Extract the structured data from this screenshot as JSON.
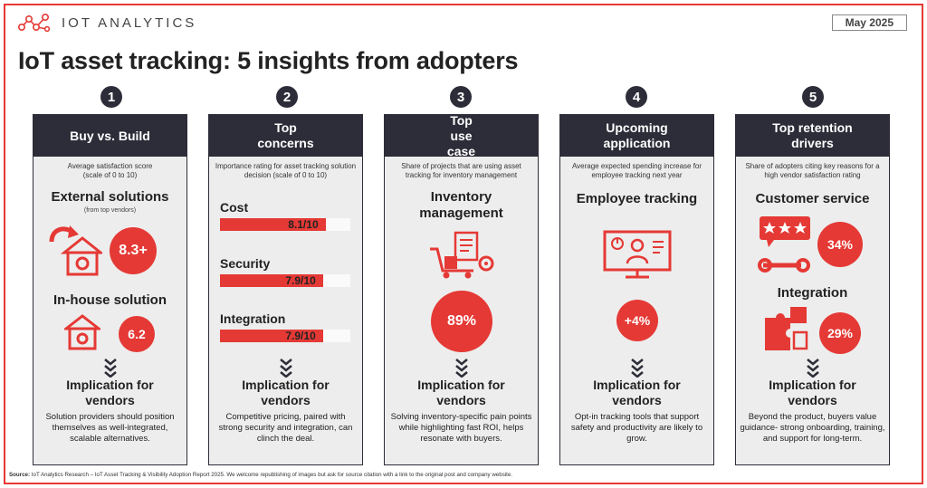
{
  "brand": {
    "name": "IOT ANALYTICS"
  },
  "date": "May 2025",
  "title": "IoT asset tracking: 5 insights from adopters",
  "colors": {
    "accent": "#e53935",
    "dark": "#2d2d39",
    "panel": "#ededed"
  },
  "columns": [
    {
      "number": "1",
      "header": "Buy vs. Build",
      "description": "Average satisfaction score (scale of 0 to 10)",
      "item1": {
        "title": "External solutions",
        "subtitle": "(from top vendors)",
        "value": "8.3+"
      },
      "item2": {
        "title": "In-house solution",
        "value": "6.2"
      },
      "implication_title": "Implication for vendors",
      "implication_text": "Solution providers should position themselves as well-integrated, scalable alternatives."
    },
    {
      "number": "2",
      "header": "Top concerns",
      "description": "Importance rating for asset tracking solution decision (scale of 0 to 10)",
      "bars": [
        {
          "label": "Cost",
          "value_text": "8.1/10",
          "value": 8.1
        },
        {
          "label": "Security",
          "value_text": "7.9/10",
          "value": 7.9
        },
        {
          "label": "Integration",
          "value_text": "7.9/10",
          "value": 7.9
        }
      ],
      "implication_title": "Implication for vendors",
      "implication_text": "Competitive pricing, paired with strong security and integration, can clinch the deal."
    },
    {
      "number": "3",
      "header": "Top use case",
      "description": "Share of projects that are using asset tracking for inventory management",
      "item_title": "Inventory management",
      "value": "89%",
      "implication_title": "Implication for vendors",
      "implication_text": "Solving inventory-specific pain points while highlighting fast ROI, helps resonate with buyers."
    },
    {
      "number": "4",
      "header": "Upcoming application",
      "description": "Average expected spending increase for employee tracking next year",
      "item_title": "Employee tracking",
      "value": "+4%",
      "implication_title": "Implication for vendors",
      "implication_text": "Opt-in tracking tools that support safety and productivity are likely to grow."
    },
    {
      "number": "5",
      "header": "Top retention drivers",
      "description": "Share of adopters citing key reasons for a high vendor satisfaction rating",
      "item1": {
        "title": "Customer service",
        "value": "34%"
      },
      "item2": {
        "title": "Integration",
        "value": "29%"
      },
      "implication_title": "Implication for vendors",
      "implication_text": "Beyond the product, buyers value guidance- strong onboarding, training, and support for long-term."
    }
  ],
  "source": {
    "label": "Source:",
    "text": "IoT Analytics Research – IoT Asset Tracking & Visibility Adoption Report 2025. We welcome republishing of images but ask for source citation with a link to the original post and company website."
  }
}
